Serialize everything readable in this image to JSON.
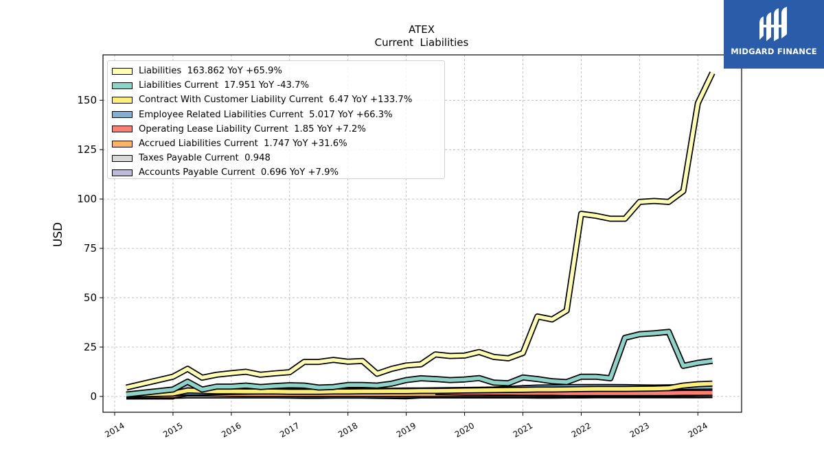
{
  "brand": {
    "name": "MIDGARD FINANCE",
    "logo_icon": "midgard-finance-logo-icon",
    "color": "#2a5caa"
  },
  "chart_data": {
    "type": "line",
    "title": "ATEX",
    "subtitle": "Current  Liabilities",
    "xlabel": "",
    "ylabel": "USD",
    "xlim": [
      2013.8,
      2024.75
    ],
    "ylim": [
      -8,
      173
    ],
    "x_ticks": [
      "2014",
      "2015",
      "2016",
      "2017",
      "2018",
      "2019",
      "2020",
      "2021",
      "2022",
      "2023",
      "2024"
    ],
    "y_ticks": [
      "0",
      "25",
      "50",
      "75",
      "100",
      "125",
      "150"
    ],
    "grid": true,
    "legend_position": "top-left",
    "series": [
      {
        "name": "Liabilities",
        "legend": "Liabilities  163.862 YoY +65.9%",
        "color": "#ffffb3",
        "x": [
          2014.2,
          2015.0,
          2015.25,
          2015.5,
          2015.75,
          2016.0,
          2016.25,
          2016.5,
          2016.75,
          2017.0,
          2017.25,
          2017.5,
          2017.75,
          2018.0,
          2018.25,
          2018.5,
          2018.75,
          2019.0,
          2019.25,
          2019.5,
          2019.75,
          2020.0,
          2020.25,
          2020.5,
          2020.75,
          2021.0,
          2021.25,
          2021.5,
          2021.75,
          2022.0,
          2022.25,
          2022.5,
          2022.75,
          2023.0,
          2023.25,
          2023.5,
          2023.75,
          2024.0,
          2024.25
        ],
        "y": [
          4.5,
          10,
          14,
          9.5,
          11,
          11.8,
          12.5,
          11,
          11.7,
          12.3,
          17.5,
          17.5,
          18.5,
          17.6,
          18,
          11.5,
          14,
          15.7,
          16.3,
          21.3,
          20.5,
          20.7,
          22.5,
          20,
          19.3,
          22,
          40.5,
          39,
          43.5,
          92.5,
          91.5,
          90,
          90,
          98.5,
          99,
          98.5,
          104,
          148.5,
          163.9
        ]
      },
      {
        "name": "Liabilities Current",
        "legend": "Liabilities Current  17.951 YoY -43.7%",
        "color": "#8dd3c7",
        "x": [
          2014.2,
          2015.0,
          2015.25,
          2015.5,
          2015.75,
          2016.0,
          2016.25,
          2016.5,
          2016.75,
          2017.0,
          2017.25,
          2017.5,
          2017.75,
          2018.0,
          2018.25,
          2018.5,
          2018.75,
          2019.0,
          2019.25,
          2019.5,
          2019.75,
          2020.0,
          2020.25,
          2020.5,
          2020.75,
          2021.0,
          2021.25,
          2021.5,
          2021.75,
          2022.0,
          2022.25,
          2022.5,
          2022.75,
          2023.0,
          2023.25,
          2023.5,
          2023.75,
          2024.0,
          2024.25
        ],
        "y": [
          1,
          3.5,
          7.5,
          3.5,
          5,
          5,
          5.5,
          4.8,
          5.3,
          5.7,
          5.5,
          4.5,
          4.8,
          5.8,
          5.8,
          5.5,
          6.5,
          8.3,
          9.2,
          8.8,
          8.3,
          8.6,
          9.3,
          7,
          6.7,
          9.6,
          8.8,
          7.7,
          7.3,
          10,
          10,
          9.2,
          29.7,
          31.5,
          32,
          32.7,
          15.5,
          17,
          18
        ]
      },
      {
        "name": "Contract With Customer Liability Current",
        "legend": "Contract With Customer Liability Current  6.47 YoY +133.7%",
        "color": "#fdef7a",
        "x": [
          2014.2,
          2015.0,
          2015.25,
          2015.5,
          2015.75,
          2016.0,
          2016.25,
          2016.5,
          2016.75,
          2017.0,
          2017.25,
          2017.5,
          2017.75,
          2018.0,
          2018.25,
          2018.5,
          2018.75,
          2019.0,
          2019.25,
          2019.5,
          2019.75,
          2020.0,
          2020.25,
          2020.5,
          2020.75,
          2021.0,
          2021.25,
          2021.5,
          2021.75,
          2022.0,
          2022.25,
          2022.5,
          2022.75,
          2023.0,
          2023.25,
          2023.5,
          2023.75,
          2024.0,
          2024.25
        ],
        "y": [
          1,
          1.5,
          3,
          2.8,
          2.6,
          2.6,
          2.5,
          2.5,
          2.5,
          2.4,
          2.4,
          2.4,
          2.5,
          2.5,
          2.6,
          2.6,
          2.7,
          2.7,
          2.8,
          2.8,
          2.9,
          3,
          3.1,
          3.2,
          3.3,
          3.4,
          3.5,
          3.5,
          3.6,
          3.7,
          3.8,
          3.8,
          3.8,
          3.9,
          4,
          4.2,
          5.5,
          6.2,
          6.5
        ]
      },
      {
        "name": "Employee Related Liabilities Current",
        "legend": "Employee Related Liabilities Current  5.017 YoY +66.3%",
        "color": "#80b1d3",
        "x": [
          2014.2,
          2015.0,
          2015.25,
          2015.5,
          2015.75,
          2016.0,
          2016.25,
          2016.5,
          2016.75,
          2017.0,
          2017.25,
          2017.5,
          2017.75,
          2018.0,
          2018.25,
          2018.5,
          2018.75,
          2019.0,
          2019.25,
          2019.5,
          2019.75,
          2020.0,
          2020.25,
          2020.5,
          2020.75,
          2021.0,
          2021.25,
          2021.5,
          2021.75,
          2022.0,
          2022.25,
          2022.5,
          2022.75,
          2023.0,
          2023.25,
          2023.5,
          2023.75,
          2024.0,
          2024.25
        ],
        "y": [
          1,
          1.5,
          2,
          2,
          2.2,
          2.3,
          2.4,
          2.5,
          2.5,
          2.6,
          2.6,
          2.7,
          2.7,
          2.8,
          2.8,
          2.9,
          2.9,
          3,
          3,
          3.1,
          3.2,
          3.3,
          3.4,
          3.5,
          3.8,
          4.2,
          4.5,
          4.6,
          4.7,
          4.8,
          4.8,
          4.8,
          4.7,
          4.6,
          4.5,
          4.6,
          4.8,
          4.9,
          5
        ]
      },
      {
        "name": "Operating Lease Liability Current",
        "legend": "Operating Lease Liability Current  1.85 YoY +7.2%",
        "color": "#fb8072",
        "x": [
          2019.5,
          2019.75,
          2020.0,
          2020.25,
          2020.5,
          2020.75,
          2021.0,
          2021.25,
          2021.5,
          2021.75,
          2022.0,
          2022.25,
          2022.5,
          2022.75,
          2023.0,
          2023.25,
          2023.5,
          2023.75,
          2024.0,
          2024.25
        ],
        "y": [
          2.2,
          2.1,
          2,
          2,
          1.9,
          1.9,
          1.8,
          1.8,
          1.8,
          1.7,
          1.7,
          1.7,
          1.7,
          1.7,
          1.7,
          1.7,
          1.7,
          1.8,
          1.8,
          1.85
        ]
      },
      {
        "name": "Accrued Liabilities Current",
        "legend": "Accrued Liabilities Current  1.747 YoY +31.6%",
        "color": "#fdb462",
        "x": [
          2014.2,
          2015.0,
          2015.25,
          2015.5,
          2015.75,
          2016.0,
          2016.25,
          2016.5,
          2016.75,
          2017.0,
          2017.25,
          2017.5,
          2017.75,
          2018.0,
          2018.25,
          2018.5,
          2018.75,
          2019.0,
          2019.25,
          2019.5,
          2019.75,
          2020.0,
          2020.25,
          2020.5,
          2020.75,
          2021.0,
          2021.25,
          2021.5,
          2021.75,
          2022.0,
          2022.25,
          2022.5,
          2022.75,
          2023.0,
          2023.25,
          2023.5,
          2023.75,
          2024.0,
          2024.25
        ],
        "y": [
          0.5,
          0.5,
          1.5,
          1.5,
          1.4,
          1.3,
          1.2,
          1.2,
          1.2,
          1.2,
          1.2,
          1.2,
          1.2,
          1.2,
          1.2,
          1.2,
          1.2,
          1.2,
          1.3,
          1.3,
          1.3,
          1.3,
          1.3,
          1.3,
          1.3,
          1.3,
          1.3,
          1.3,
          1.3,
          1.3,
          1.3,
          1.3,
          1.3,
          1.3,
          1.3,
          1.4,
          1.5,
          1.6,
          1.7
        ]
      },
      {
        "name": "Taxes Payable Current",
        "legend": "Taxes Payable Current  0.948",
        "color": "#d9d9d9",
        "x": [
          2014.2,
          2015.0,
          2015.25,
          2015.5,
          2015.75,
          2016.0,
          2016.25,
          2016.5,
          2016.75,
          2017.0,
          2017.25,
          2017.5,
          2017.75,
          2018.0,
          2018.25,
          2018.5,
          2018.75,
          2019.0,
          2019.25,
          2019.5,
          2019.75,
          2020.0,
          2020.25,
          2020.5,
          2020.75,
          2021.0,
          2021.25,
          2021.5,
          2021.75,
          2022.0,
          2022.25,
          2022.5,
          2022.75,
          2023.0,
          2023.25,
          2023.5,
          2023.75,
          2024.0,
          2024.25
        ],
        "y": [
          0.3,
          0.3,
          0.5,
          0.5,
          0.5,
          0.5,
          0.5,
          0.5,
          0.5,
          0.5,
          0.5,
          0.5,
          0.5,
          0.5,
          0.5,
          0.5,
          0.5,
          0.5,
          0.6,
          0.6,
          0.6,
          0.6,
          0.6,
          0.6,
          0.6,
          0.6,
          0.7,
          0.7,
          0.7,
          0.8,
          0.8,
          0.8,
          0.8,
          0.8,
          0.8,
          0.9,
          0.9,
          0.9,
          0.95
        ]
      },
      {
        "name": "Accounts Payable Current",
        "legend": "Accounts Payable Current  0.696 YoY +7.9%",
        "color": "#bebada",
        "x": [
          2014.2,
          2015.0,
          2015.25,
          2015.5,
          2015.75,
          2016.0,
          2016.25,
          2016.5,
          2016.75,
          2017.0,
          2017.25,
          2017.5,
          2017.75,
          2018.0,
          2018.25,
          2018.5,
          2018.75,
          2019.0,
          2019.25,
          2019.5,
          2019.75,
          2020.0,
          2020.25,
          2020.5,
          2020.75,
          2021.0,
          2021.25,
          2021.5,
          2021.75,
          2022.0,
          2022.25,
          2022.5,
          2022.75,
          2023.0,
          2023.25,
          2023.5,
          2023.75,
          2024.0,
          2024.25
        ],
        "y": [
          0,
          0,
          4.8,
          3.5,
          2.5,
          1.5,
          0.8,
          0.6,
          0.5,
          0.4,
          0.3,
          0.3,
          0.4,
          0.4,
          0.4,
          0.3,
          0.2,
          0.1,
          0.5,
          0.5,
          0.5,
          0.5,
          0.5,
          0.5,
          0.5,
          0.5,
          0.4,
          0.4,
          0.5,
          0.5,
          0.6,
          0.6,
          0.6,
          0.6,
          0.6,
          0.6,
          0.6,
          0.6,
          0.7
        ]
      }
    ]
  }
}
